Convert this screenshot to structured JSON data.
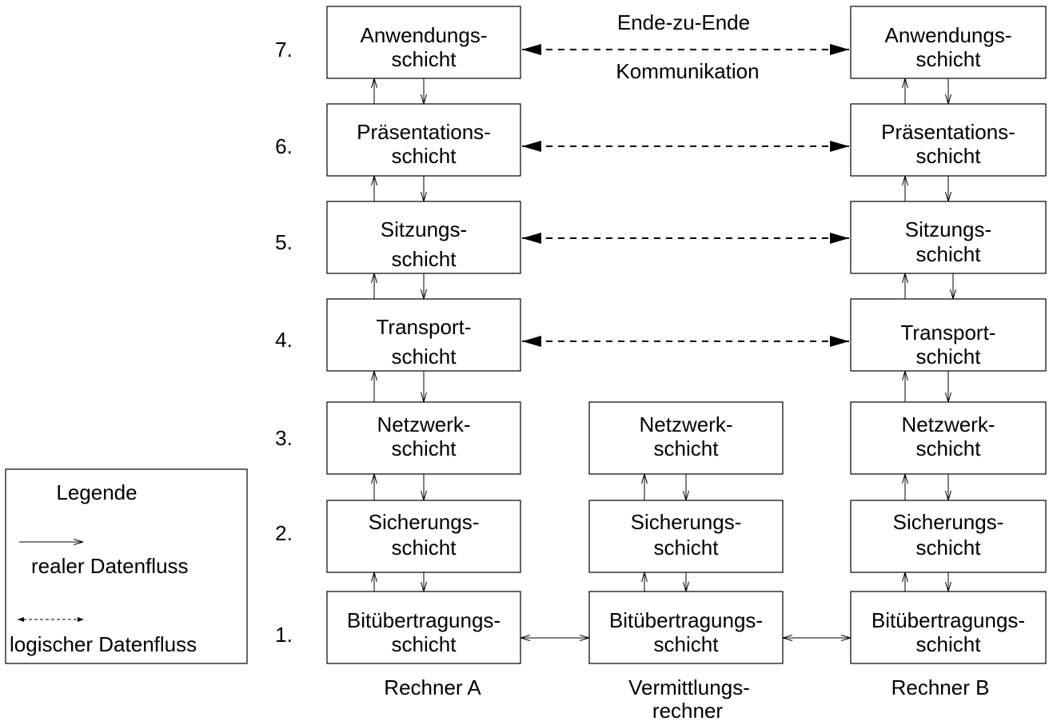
{
  "layer_numbers": [
    "7.",
    "6.",
    "5.",
    "4.",
    "3.",
    "2.",
    "1."
  ],
  "stacks": {
    "a": {
      "name": "Rechner A",
      "layers": [
        [
          "Anwendungs-",
          "schicht"
        ],
        [
          "Präsentations-",
          "schicht"
        ],
        [
          "Sitzungs-",
          "schicht"
        ],
        [
          "Transport-",
          "schicht"
        ],
        [
          "Netzwerk-",
          "schicht"
        ],
        [
          "Sicherungs-",
          "schicht"
        ],
        [
          "Bitübertragungs-",
          "schicht"
        ]
      ]
    },
    "v": {
      "name": [
        "Vermittlungs-",
        "rechner"
      ],
      "layers": [
        [
          "Netzwerk-",
          "schicht"
        ],
        [
          "Sicherungs-",
          "schicht"
        ],
        [
          "Bitübertragungs-",
          "schicht"
        ]
      ]
    },
    "b": {
      "name": "Rechner B",
      "layers": [
        [
          "Anwendungs-",
          "schicht"
        ],
        [
          "Präsentations-",
          "schicht"
        ],
        [
          "Sitzungs-",
          "schicht"
        ],
        [
          "Transport-",
          "schicht"
        ],
        [
          "Netzwerk-",
          "schicht"
        ],
        [
          "Sicherungs-",
          "schicht"
        ],
        [
          "Bitübertragungs-",
          "schicht"
        ]
      ]
    }
  },
  "end_to_end": [
    "Ende-zu-Ende",
    "Kommunikation"
  ],
  "legend": {
    "title": "Legende",
    "real": "realer Datenfluss",
    "logical": "logischer Datenfluss"
  }
}
